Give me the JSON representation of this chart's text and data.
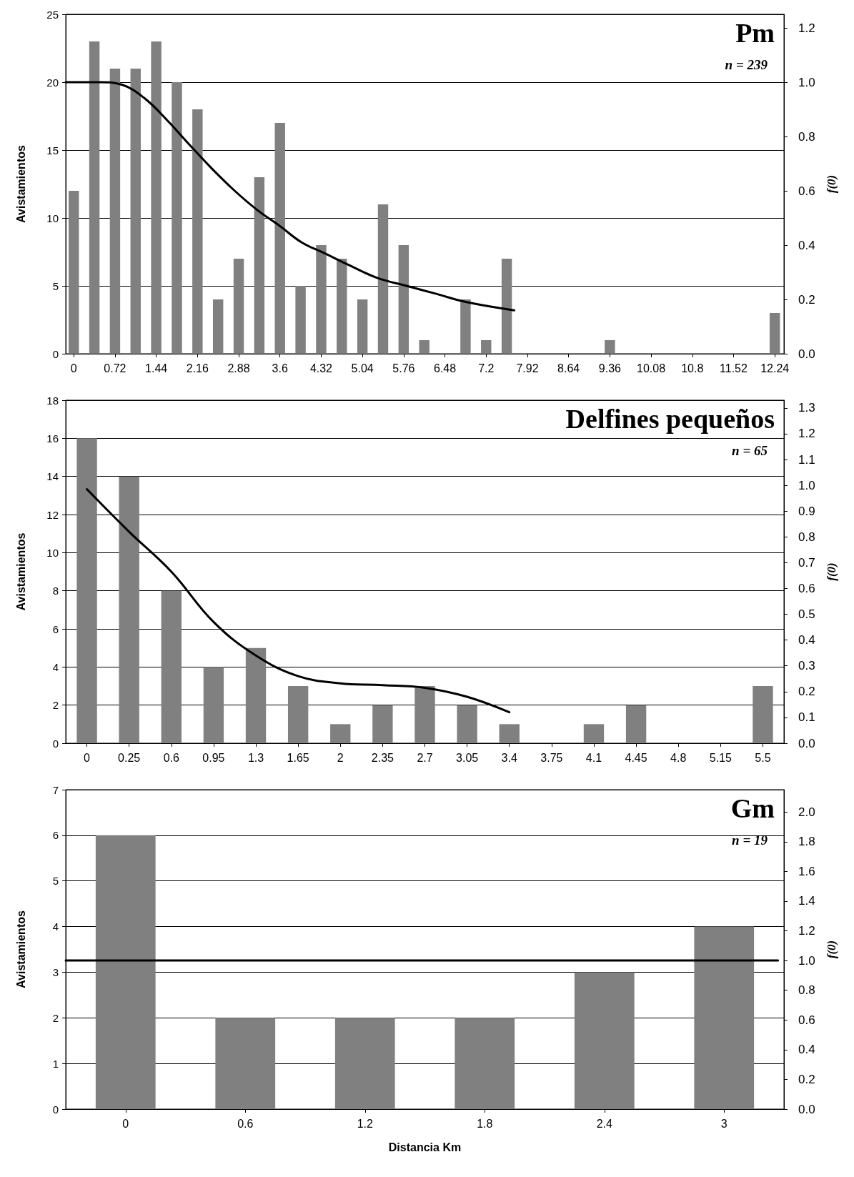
{
  "chart_data": [
    {
      "type": "bar",
      "title": "Pm",
      "subtitle": "n = 239",
      "ylabel": "Avistamientos",
      "y2label": "f(0)",
      "x": [
        0,
        0.36,
        0.72,
        1.08,
        1.44,
        1.8,
        2.16,
        2.52,
        2.88,
        3.24,
        3.6,
        3.96,
        4.32,
        4.68,
        5.04,
        5.4,
        5.76,
        6.12,
        6.48,
        6.84,
        7.2,
        7.56,
        7.92,
        8.28,
        8.64,
        9.0,
        9.36,
        9.72,
        10.08,
        10.44,
        10.8,
        11.16,
        11.52,
        11.88,
        12.24
      ],
      "series": [
        {
          "color": "#808080",
          "values": [
            12,
            23,
            21,
            21,
            23,
            20,
            18,
            4,
            7,
            13,
            17,
            5,
            8,
            7,
            4,
            11,
            8,
            1,
            0,
            4,
            1,
            7,
            0,
            0,
            0,
            0,
            1,
            0,
            0,
            0,
            0,
            0,
            0,
            0,
            3
          ]
        },
        {
          "type": "line",
          "axis": "y2",
          "color": "#000000",
          "x": [
            -0.14,
            0.46,
            0.85,
            1.24,
            1.63,
            2.02,
            2.42,
            2.81,
            3.2,
            3.6,
            3.98,
            4.38,
            4.77,
            5.29,
            5.81,
            6.34,
            6.86,
            7.69
          ],
          "values": [
            1.0,
            1.0,
            0.99,
            0.94,
            0.86,
            0.77,
            0.68,
            0.6,
            0.53,
            0.47,
            0.41,
            0.37,
            0.33,
            0.28,
            0.25,
            0.22,
            0.19,
            0.16
          ]
        }
      ],
      "xlim": [
        -0.14,
        12.4
      ],
      "xticks": [
        0,
        0.72,
        1.44,
        2.16,
        2.88,
        3.6,
        4.32,
        5.04,
        5.76,
        6.48,
        7.2,
        7.92,
        8.64,
        9.36,
        10.08,
        10.8,
        11.52,
        12.24
      ],
      "ylim": [
        0,
        25
      ],
      "yticks": [
        0,
        5,
        10,
        15,
        20,
        25
      ],
      "y2lim": [
        0,
        1.25
      ],
      "y2ticks": [
        {
          "value": 0,
          "label": "0.0"
        },
        0.2,
        0.4,
        0.6,
        0.8,
        {
          "value": 1,
          "label": "1.0"
        },
        1.2
      ],
      "grid": "y",
      "marker": "none",
      "line_style": "solid"
    },
    {
      "type": "bar",
      "title": "Delfines pequeños",
      "subtitle": "n = 65",
      "ylabel": "Avistamientos",
      "y2label": "f(0)",
      "categories": [
        "0",
        "0.25",
        "0.6",
        "0.95",
        "1.3",
        "1.65",
        "2",
        "2.35",
        "2.7",
        "3.05",
        "3.4",
        "3.75",
        "4.1",
        "4.45",
        "4.8",
        "5.15",
        "5.5"
      ],
      "series": [
        {
          "color": "#808080",
          "values": [
            16,
            14,
            8,
            4,
            5,
            3,
            1,
            2,
            3,
            2,
            1,
            0,
            1,
            2,
            0,
            0,
            3
          ]
        },
        {
          "type": "line",
          "axis": "y2",
          "color": "#000000",
          "values": [
            0.985,
            0.82,
            0.665,
            0.47,
            0.34,
            0.26,
            0.232,
            0.225,
            0.215,
            0.18,
            0.12,
            null,
            null,
            null,
            null,
            null,
            null
          ]
        }
      ],
      "ylim": [
        0,
        18
      ],
      "yticks": [
        0,
        2,
        4,
        6,
        8,
        10,
        12,
        14,
        16,
        18
      ],
      "y2lim": [
        0,
        1.33
      ],
      "y2ticks": [
        {
          "value": 0,
          "label": "0.0"
        },
        0.1,
        0.2,
        0.3,
        0.4,
        0.5,
        0.6,
        0.7,
        0.8,
        0.9,
        {
          "value": 1,
          "label": "1.0"
        },
        1.1,
        1.2,
        1.3
      ],
      "grid": "y",
      "marker": "none",
      "line_style": "solid"
    },
    {
      "type": "bar",
      "title": "Gm",
      "subtitle": "n = 19",
      "xlabel": "Distancia Km",
      "ylabel": "Avistamientos",
      "y2label": "f(0)",
      "x": [
        0,
        0.6,
        1.2,
        1.8,
        2.4,
        3
      ],
      "series": [
        {
          "color": "#808080",
          "values": [
            6,
            2,
            2,
            2,
            3,
            4
          ]
        },
        {
          "type": "line",
          "axis": "y2",
          "color": "#000000",
          "x": [
            -0.3,
            3.27
          ],
          "values": [
            1.0,
            1.0
          ]
        }
      ],
      "xlim": [
        -0.3,
        3.3
      ],
      "xticks": [
        0,
        0.6,
        1.2,
        1.8,
        2.4,
        3
      ],
      "ylim": [
        0,
        7
      ],
      "yticks": [
        0,
        1,
        2,
        3,
        4,
        5,
        6,
        7
      ],
      "y2lim": [
        0,
        2.15
      ],
      "y2ticks": [
        {
          "value": 0,
          "label": "0.0"
        },
        0.2,
        0.4,
        0.6,
        0.8,
        {
          "value": 1,
          "label": "1.0"
        },
        1.2,
        1.4,
        1.6,
        1.8,
        {
          "value": 2,
          "label": "2.0"
        }
      ],
      "grid": "y",
      "marker": "none",
      "line_style": "solid"
    }
  ]
}
